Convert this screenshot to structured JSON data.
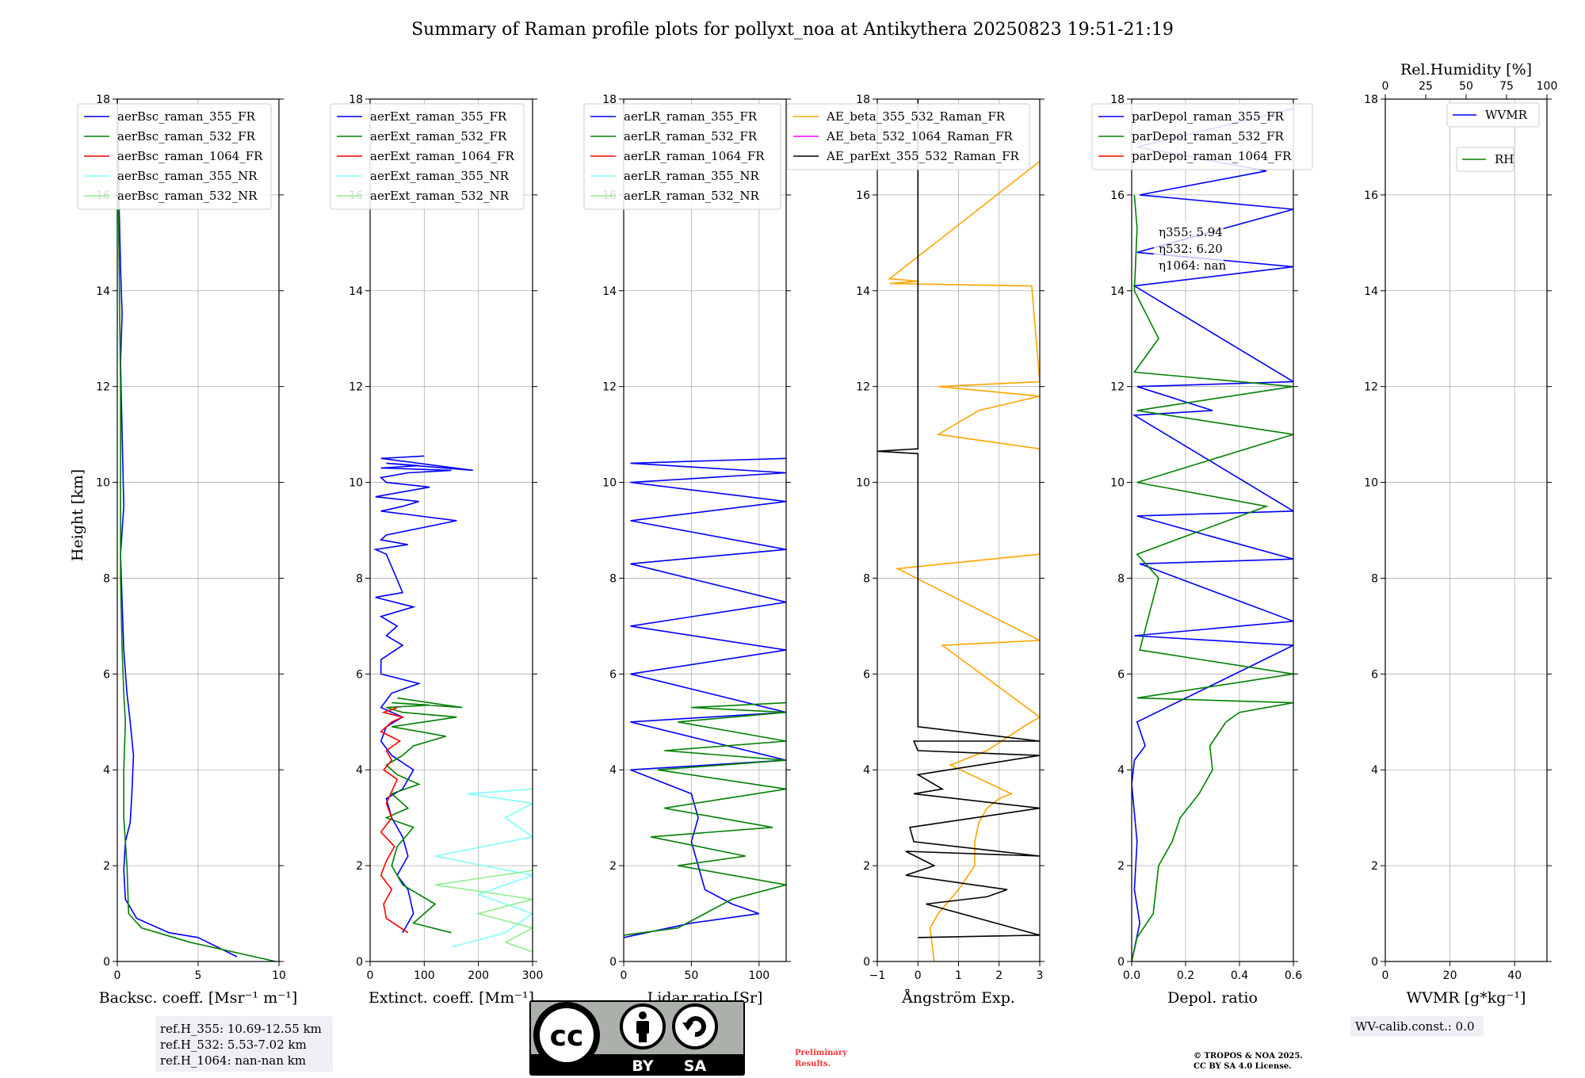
{
  "title": "Summary of Raman profile plots for pollyxt_noa at Antikythera 20250823 19:51-21:19",
  "ylabel": "Height [km]",
  "colors": {
    "blue": "#0000ff",
    "green": "#008000",
    "red": "#ff0000",
    "cyan": "#7fffff",
    "lightgreen": "#90ee90",
    "orange": "#ffa500",
    "magenta": "#ff00ff",
    "black": "#000000"
  },
  "chart_data": [
    {
      "type": "line",
      "xlabel": "Backsc. coeff. [Msr⁻¹ m⁻¹]",
      "xlim": [
        0,
        10
      ],
      "ylim": [
        0,
        18
      ],
      "xticks": [
        "0",
        "5",
        "10"
      ],
      "yticks": [
        "0",
        "2",
        "4",
        "6",
        "8",
        "10",
        "12",
        "14",
        "16",
        "18"
      ],
      "grid": true,
      "legend": "top-left",
      "series": [
        {
          "name": "aerBsc_raman_355_FR",
          "color": "blue",
          "x": [
            7.4,
            5,
            3.2,
            1.2,
            0.5,
            0.4,
            0.5,
            0.8,
            0.9,
            1,
            0.8,
            0.6,
            0.4,
            0.3,
            0.2,
            0.4,
            0.3,
            0.2,
            0.3,
            0.2,
            0.1,
            0
          ],
          "y": [
            0.1,
            0.5,
            0.6,
            0.9,
            1.3,
            1.9,
            2.5,
            2.9,
            3.5,
            4.3,
            5,
            5.6,
            6.5,
            7.5,
            8.5,
            9.5,
            11,
            12.5,
            13.5,
            14.5,
            16,
            18
          ]
        },
        {
          "name": "aerBsc_raman_532_FR",
          "color": "green",
          "x": [
            9.8,
            4.5,
            1.5,
            0.7,
            0.6,
            0.5,
            0.4,
            0.4,
            0.4,
            0.5,
            0.4,
            0.3,
            0.2,
            0.2,
            0.1,
            0
          ],
          "y": [
            0,
            0.4,
            0.7,
            1,
            2,
            2.5,
            3,
            3.5,
            4,
            5,
            5.6,
            6.5,
            8,
            12,
            15,
            18
          ]
        },
        {
          "name": "aerBsc_raman_1064_FR",
          "color": "red",
          "x": [],
          "y": []
        },
        {
          "name": "aerBsc_raman_355_NR",
          "color": "cyan",
          "x": [],
          "y": []
        },
        {
          "name": "aerBsc_raman_532_NR",
          "color": "lightgreen",
          "x": [],
          "y": []
        }
      ],
      "annotation": [
        "ref.H_355: 10.69-12.55 km",
        "ref.H_532: 5.53-7.02 km",
        "ref.H_1064: nan-nan km"
      ]
    },
    {
      "type": "line",
      "xlabel": "Extinct. coeff. [Mm⁻¹]",
      "xlim": [
        0,
        300
      ],
      "ylim": [
        0,
        18
      ],
      "xticks": [
        "0",
        "100",
        "200",
        "300"
      ],
      "yticks": [
        "0",
        "2",
        "4",
        "6",
        "8",
        "10",
        "12",
        "14",
        "16",
        "18"
      ],
      "grid": true,
      "legend": "top-left",
      "series": [
        {
          "name": "aerExt_raman_355_FR",
          "color": "blue",
          "x": [
            60,
            80,
            70,
            50,
            70,
            60,
            40,
            30,
            60,
            80,
            40,
            20,
            30,
            60,
            20,
            40,
            90,
            20,
            20,
            60,
            30,
            50,
            20,
            80,
            10,
            60,
            30,
            10,
            70,
            20,
            30,
            160,
            20,
            60,
            90,
            10,
            60,
            110,
            30,
            20,
            70,
            150,
            20,
            90,
            30,
            190,
            20,
            100
          ],
          "y": [
            0.6,
            1,
            1.5,
            1.8,
            2.2,
            2.6,
            3,
            3.4,
            3.6,
            4,
            4.3,
            4.6,
            4.9,
            5.1,
            5.3,
            5.6,
            5.8,
            6,
            6.3,
            6.6,
            6.8,
            7,
            7.2,
            7.4,
            7.6,
            7.7,
            8.5,
            8.6,
            8.7,
            8.8,
            8.9,
            9.2,
            9.4,
            9.5,
            9.6,
            9.7,
            9.8,
            9.9,
            10,
            10.1,
            10.2,
            10.25,
            10.3,
            10.35,
            10.4,
            10.25,
            10.5,
            10.55
          ]
        },
        {
          "name": "aerExt_raman_532_FR",
          "color": "green",
          "x": [
            150,
            80,
            120,
            60,
            40,
            50,
            80,
            30,
            70,
            40,
            90,
            50,
            30,
            60,
            80,
            140,
            40,
            160,
            60,
            30,
            110,
            40,
            170,
            50
          ],
          "y": [
            0.6,
            0.8,
            1.2,
            1.6,
            2,
            2.4,
            2.8,
            3,
            3.2,
            3.5,
            3.7,
            3.9,
            4.1,
            4.3,
            4.5,
            4.7,
            4.9,
            5.1,
            5.2,
            5.3,
            5.35,
            5.4,
            5.3,
            5.5
          ]
        },
        {
          "name": "aerExt_raman_1064_FR",
          "color": "red",
          "x": [
            70,
            30,
            25,
            40,
            20,
            30,
            45,
            20,
            40,
            30,
            50,
            25,
            40,
            30,
            55,
            20,
            40,
            60,
            25,
            50
          ],
          "y": [
            0.6,
            0.9,
            1.2,
            1.5,
            1.8,
            2.1,
            2.4,
            2.7,
            3,
            3.3,
            3.8,
            4,
            4.2,
            4.4,
            4.6,
            4.8,
            5,
            5.1,
            5.2,
            5.3
          ]
        },
        {
          "name": "aerExt_raman_355_NR",
          "color": "cyan",
          "x": [
            150,
            250,
            300,
            200,
            300,
            120,
            300,
            250,
            300,
            180,
            300
          ],
          "y": [
            0.3,
            0.6,
            1,
            1.4,
            1.8,
            2.2,
            2.6,
            3,
            3.3,
            3.5,
            3.6
          ]
        },
        {
          "name": "aerExt_raman_532_NR",
          "color": "lightgreen",
          "x": [
            300,
            250,
            300,
            200,
            300,
            120,
            300
          ],
          "y": [
            0.2,
            0.4,
            0.7,
            1,
            1.3,
            1.6,
            1.9
          ]
        }
      ]
    },
    {
      "type": "line",
      "xlabel": "Lidar ratio [Sr]",
      "xlim": [
        0,
        120
      ],
      "ylim": [
        0,
        18
      ],
      "xticks": [
        "0",
        "50",
        "100"
      ],
      "yticks": [
        "0",
        "2",
        "4",
        "6",
        "8",
        "10",
        "12",
        "14",
        "16",
        "18"
      ],
      "grid": true,
      "legend": "top-left",
      "series": [
        {
          "name": "aerLR_raman_355_FR",
          "color": "blue",
          "x": [
            0,
            50,
            100,
            80,
            60,
            55,
            50,
            55,
            50,
            5,
            120,
            5,
            120,
            5,
            120,
            5,
            120,
            5,
            120,
            5,
            120,
            5,
            120,
            5,
            120
          ],
          "y": [
            0.5,
            0.8,
            1,
            1.2,
            1.5,
            2,
            2.5,
            3,
            3.5,
            4,
            4.2,
            5,
            5.2,
            6,
            6.5,
            7,
            7.5,
            8.3,
            8.6,
            9.2,
            9.6,
            10,
            10.2,
            10.4,
            10.5
          ]
        },
        {
          "name": "aerLR_raman_532_FR",
          "color": "green",
          "x": [
            0,
            40,
            80,
            120,
            40,
            90,
            20,
            110,
            30,
            120,
            25,
            120,
            30,
            120,
            40,
            120,
            50,
            120
          ],
          "y": [
            0.55,
            0.7,
            1.3,
            1.6,
            2,
            2.2,
            2.6,
            2.8,
            3.2,
            3.6,
            4,
            4.2,
            4.4,
            4.6,
            5,
            5.2,
            5.3,
            5.4
          ]
        },
        {
          "name": "aerLR_raman_1064_FR",
          "color": "red",
          "x": [],
          "y": []
        },
        {
          "name": "aerLR_raman_355_NR",
          "color": "cyan",
          "x": [],
          "y": []
        },
        {
          "name": "aerLR_raman_532_NR",
          "color": "lightgreen",
          "x": [],
          "y": []
        }
      ]
    },
    {
      "type": "line",
      "xlabel": "Ångström Exp.",
      "xlim": [
        -1,
        3
      ],
      "ylim": [
        0,
        18
      ],
      "xticks": [
        "−1",
        "0",
        "1",
        "2",
        "3"
      ],
      "yticks": [
        "0",
        "2",
        "4",
        "6",
        "8",
        "10",
        "12",
        "14",
        "16",
        "18"
      ],
      "grid": true,
      "legend": "top-right",
      "series": [
        {
          "name": "AE_beta_355_532_Raman_FR",
          "color": "orange",
          "x": [
            0.4,
            0.3,
            0.5,
            1,
            1.4,
            1.4,
            1.5,
            1.7,
            2,
            2.3,
            1.8,
            1.3,
            0.8,
            1.7,
            2.6,
            3,
            0.6,
            3,
            -0.5,
            3,
            3,
            0.5,
            1.5,
            3,
            0.5,
            3,
            2.8,
            -0.7,
            0,
            -0.7,
            3
          ],
          "y": [
            0,
            0.7,
            1,
            1.5,
            2,
            2.5,
            2.9,
            3.2,
            3.4,
            3.5,
            3.7,
            3.9,
            4.1,
            4.4,
            4.9,
            5.1,
            6.6,
            6.7,
            8.2,
            8.5,
            10.7,
            11,
            11.5,
            11.8,
            12,
            12.1,
            14.1,
            14.15,
            14.2,
            14.25,
            16.7
          ]
        },
        {
          "name": "AE_beta_532_1064_Raman_FR",
          "color": "magenta",
          "x": [],
          "y": []
        },
        {
          "name": "AE_parExt_355_532_Raman_FR",
          "color": "black",
          "x": [
            0,
            3,
            0.2,
            1.7,
            2.2,
            -0.3,
            0.4,
            -0.3,
            3,
            -0.1,
            -0.2,
            3,
            -0.1,
            0.6,
            0,
            3,
            0,
            -0.1,
            3,
            0,
            0,
            -1,
            0,
            0
          ],
          "y": [
            0.5,
            0.55,
            1.2,
            1.35,
            1.5,
            1.8,
            2,
            2.3,
            2.2,
            2.5,
            2.8,
            3.2,
            3.5,
            3.6,
            3.9,
            4.3,
            4.4,
            4.6,
            4.6,
            4.9,
            10.6,
            10.65,
            10.7,
            18
          ]
        }
      ]
    },
    {
      "type": "line",
      "xlabel": "Depol. ratio",
      "xlim": [
        0,
        0.6
      ],
      "ylim": [
        0,
        18
      ],
      "xticks": [
        "0.0",
        "0.2",
        "0.4",
        "0.6"
      ],
      "yticks": [
        "0",
        "2",
        "4",
        "6",
        "8",
        "10",
        "12",
        "14",
        "16",
        "18"
      ],
      "grid": true,
      "legend": "top-left",
      "series": [
        {
          "name": "parDepol_raman_355_FR",
          "color": "blue",
          "x": [
            0,
            0.03,
            0.01,
            0.02,
            0,
            0.01,
            0.05,
            0.02,
            0.6,
            0.01,
            0.6,
            0.03,
            0.6,
            0.02,
            0.6,
            0.01,
            0.3,
            0.02,
            0.6,
            0.01,
            0.6,
            0.02,
            0.6,
            0.03,
            0.5,
            0.02,
            0.6
          ],
          "y": [
            0,
            0.8,
            1.5,
            2.5,
            3.7,
            4.2,
            4.5,
            5,
            6.6,
            6.8,
            7.1,
            8.3,
            8.4,
            9.3,
            9.4,
            11.4,
            11.5,
            12,
            12.1,
            14.1,
            14.5,
            14.8,
            15.7,
            16,
            16.5,
            17,
            17.8
          ]
        },
        {
          "name": "parDepol_raman_532_FR",
          "color": "green",
          "x": [
            0,
            0.02,
            0.08,
            0.1,
            0.15,
            0.18,
            0.25,
            0.3,
            0.29,
            0.35,
            0.4,
            0.6,
            0.02,
            0.6,
            0.03,
            0.1,
            0.02,
            0.5,
            0.02,
            0.6,
            0.02,
            0.6,
            0.01,
            0.1,
            0.01,
            0.02,
            0.01
          ],
          "y": [
            0,
            0.5,
            1,
            2,
            2.5,
            3,
            3.5,
            4,
            4.5,
            5,
            5.2,
            5.4,
            5.5,
            6,
            6.5,
            8,
            8.5,
            9.5,
            10,
            11,
            11.5,
            12,
            12.3,
            13,
            14,
            15.3,
            16
          ]
        },
        {
          "name": "parDepol_raman_1064_FR",
          "color": "red",
          "x": [],
          "y": []
        }
      ],
      "annotation": [
        "η355: 5.94",
        "η532: 6.20",
        "η1064: nan"
      ]
    },
    {
      "type": "line",
      "xlabel": "WVMR [g*kg⁻¹]",
      "top_xlabel": "Rel.Humidity [%]",
      "xlim": [
        0,
        50
      ],
      "ylim": [
        0,
        18
      ],
      "xticks": [
        "0",
        "20",
        "40"
      ],
      "top_xticks": [
        "0",
        "25",
        "50",
        "75",
        "100"
      ],
      "yticks": [
        "0",
        "2",
        "4",
        "6",
        "8",
        "10",
        "12",
        "14",
        "16",
        "18"
      ],
      "grid": true,
      "legend": "top-right",
      "series": [
        {
          "name": "WVMR",
          "color": "blue",
          "x": [],
          "y": []
        },
        {
          "name": "RH",
          "color": "green",
          "x": [],
          "y": []
        }
      ],
      "annotation": [
        "WV-calib.const.: 0.0"
      ]
    }
  ],
  "footer": {
    "cc_license": {
      "badge": "cc",
      "by": "BY",
      "sa": "SA"
    },
    "preliminary": [
      "Preliminary",
      "Results."
    ],
    "copyright": [
      "© TROPOS & NOA 2025.",
      "CC BY SA 4.0 License."
    ]
  }
}
